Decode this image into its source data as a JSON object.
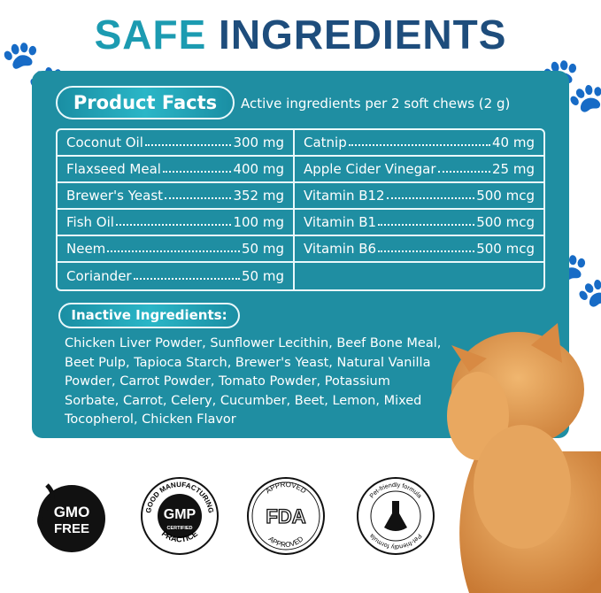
{
  "title": {
    "part1": "SAFE",
    "part2": "INGREDIENTS"
  },
  "product_facts": {
    "label": "Product Facts",
    "subtitle": "Active ingredients per 2 soft chews (2 g)",
    "rows": [
      [
        {
          "name": "Coconut Oil",
          "amount": "300 mg"
        },
        {
          "name": "Catnip",
          "amount": "40 mg"
        }
      ],
      [
        {
          "name": "Flaxseed Meal",
          "amount": "400 mg"
        },
        {
          "name": "Apple Cider Vinegar",
          "amount": "25 mg"
        }
      ],
      [
        {
          "name": "Brewer's Yeast",
          "amount": "352 mg"
        },
        {
          "name": "Vitamin B12",
          "amount": "500 mcg"
        }
      ],
      [
        {
          "name": "Fish Oil",
          "amount": "100 mg"
        },
        {
          "name": "Vitamin B1",
          "amount": "500 mcg"
        }
      ],
      [
        {
          "name": "Neem",
          "amount": "50 mg"
        },
        {
          "name": "Vitamin B6",
          "amount": "500 mcg"
        }
      ],
      [
        {
          "name": "Coriander",
          "amount": "50 mg"
        },
        null
      ]
    ]
  },
  "inactive": {
    "label": "Inactive Ingredients:",
    "text": "Chicken Liver Powder, Sunflower Lecithin, Beef Bone Meal, Beet Pulp, Tapioca Starch, Brewer's Yeast, Natural Vanilla Powder, Carrot Powder, Tomato Powder, Potassium Sorbate, Carrot, Celery, Cucumber, Beet, Lemon, Mixed Tocopherol, Chicken Flavor"
  },
  "badges": [
    {
      "icon": "gmo-free-icon",
      "line1": "GMO",
      "line2": "FREE"
    },
    {
      "icon": "gmp-icon",
      "ring": "GOOD MANUFACTURING",
      "center": "GMP",
      "sub": "CERTIFIED",
      "bottom": "PRACTICE"
    },
    {
      "icon": "fda-icon",
      "top": "APPROVED",
      "center": "FDA",
      "bottom": "APPROVED"
    },
    {
      "icon": "pet-friendly-icon",
      "ring": "Pet-friendly formula"
    }
  ],
  "colors": {
    "teal": "#1f8ea2",
    "title_teal": "#1c9bb1",
    "navy": "#1e4d7c",
    "cat": "#e09a4e"
  }
}
